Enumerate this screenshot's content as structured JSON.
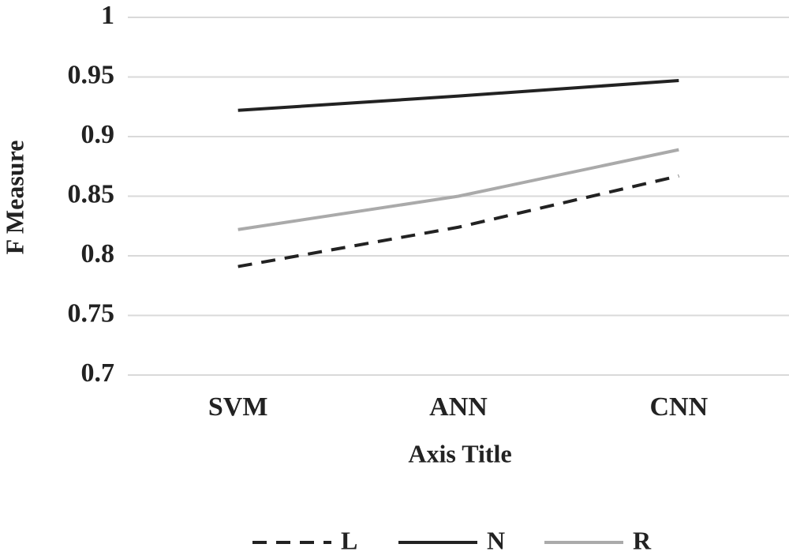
{
  "chart_data": {
    "type": "line",
    "x_label": "Axis Title",
    "y_label": "F Measure",
    "categories": [
      "SVM",
      "ANN",
      "CNN"
    ],
    "series": [
      {
        "name": "L",
        "color": "#222222",
        "style": "dashed",
        "values": [
          0.791,
          0.824,
          0.867
        ]
      },
      {
        "name": "N",
        "color": "#222222",
        "style": "solid",
        "values": [
          0.922,
          0.934,
          0.947
        ]
      },
      {
        "name": "R",
        "color": "#aaaaaa",
        "style": "solid",
        "values": [
          0.822,
          0.85,
          0.889
        ]
      }
    ],
    "ylim": [
      0.7,
      1
    ],
    "yticks": [
      0.7,
      0.75,
      0.8,
      0.85,
      0.9,
      0.95,
      1
    ],
    "grid": true,
    "legend": "bottom"
  }
}
